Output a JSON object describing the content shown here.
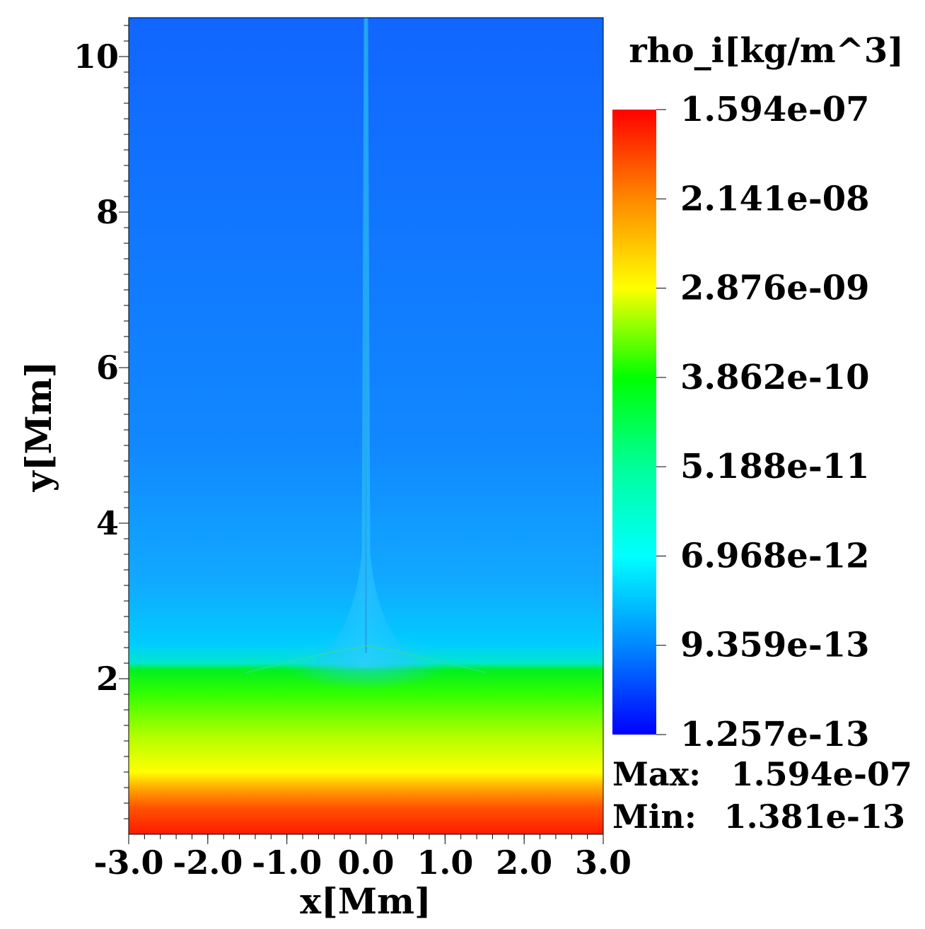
{
  "chart_data": {
    "type": "heatmap",
    "variable": "rho_i[kg/m^3]",
    "xlabel": "x[Mm]",
    "ylabel": "y[Mm]",
    "xlim": [
      -3.0,
      3.0
    ],
    "ylim": [
      0.0,
      10.5
    ],
    "x_ticks": [
      "-3.0",
      "-2.0",
      "-1.0",
      "0.0",
      "1.0",
      "2.0",
      "3.0"
    ],
    "y_ticks": [
      "2",
      "4",
      "6",
      "8",
      "10"
    ],
    "x_tick_values": [
      -3,
      -2,
      -1,
      0,
      1,
      2,
      3
    ],
    "y_tick_values": [
      2,
      4,
      6,
      8,
      10
    ],
    "colorbar": {
      "scale": "log",
      "labels": [
        "1.594e-07",
        "2.141e-08",
        "2.876e-09",
        "3.862e-10",
        "5.188e-11",
        "6.968e-12",
        "9.359e-13",
        "1.257e-13"
      ],
      "values": [
        1.594e-07,
        2.141e-08,
        2.876e-09,
        3.862e-10,
        5.188e-11,
        6.968e-12,
        9.359e-13,
        1.257e-13
      ],
      "colormap": [
        "#ff0000",
        "#ff8800",
        "#ffff00",
        "#00ff00",
        "#00ff99",
        "#00ffff",
        "#0088ff",
        "#0000ff"
      ]
    },
    "stats": {
      "max_label": "Max:",
      "max_value": "1.594e-07",
      "min_label": "Min:",
      "min_value": "1.381e-13"
    },
    "features": {
      "upper_color": "#1166ff",
      "transition_region_height_Mm": 2.15,
      "jet_center_x_Mm": 0.0,
      "jet_top_y_Mm": 10.5,
      "jet_color": "#22aaee"
    },
    "density_profile_y_Mm": [
      {
        "y": 0.0,
        "color": "#ff1a00"
      },
      {
        "y": 0.35,
        "color": "#ff5500"
      },
      {
        "y": 0.6,
        "color": "#ffaa00"
      },
      {
        "y": 0.8,
        "color": "#ffff00"
      },
      {
        "y": 1.3,
        "color": "#aaff00"
      },
      {
        "y": 1.8,
        "color": "#33ff00"
      },
      {
        "y": 2.12,
        "color": "#00f022"
      },
      {
        "y": 2.2,
        "color": "#00e6cc"
      },
      {
        "y": 2.45,
        "color": "#00ccff"
      },
      {
        "y": 3.2,
        "color": "#11aaff"
      },
      {
        "y": 5.0,
        "color": "#1188ff"
      },
      {
        "y": 10.5,
        "color": "#1166ff"
      }
    ]
  }
}
